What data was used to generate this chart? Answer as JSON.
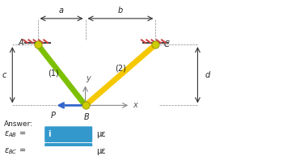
{
  "background_color": "#ffffff",
  "bar1_color": "#7dc000",
  "bar2_color": "#f5c800",
  "wall_color": "#cc4444",
  "arrow_color": "#3366cc",
  "text_color": "#222222",
  "input_box_color": "#3399cc",
  "input_text_color": "#ffffff",
  "label_a": "a",
  "label_b": "b",
  "label_c": "c",
  "label_d": "d",
  "label_1": "(1)",
  "label_2": "(2)",
  "label_A": "A",
  "label_B": "B",
  "label_C": "C",
  "label_P": "P",
  "label_x": "x",
  "label_y": "y",
  "label_answer": "Answer:",
  "label_mu": "με"
}
